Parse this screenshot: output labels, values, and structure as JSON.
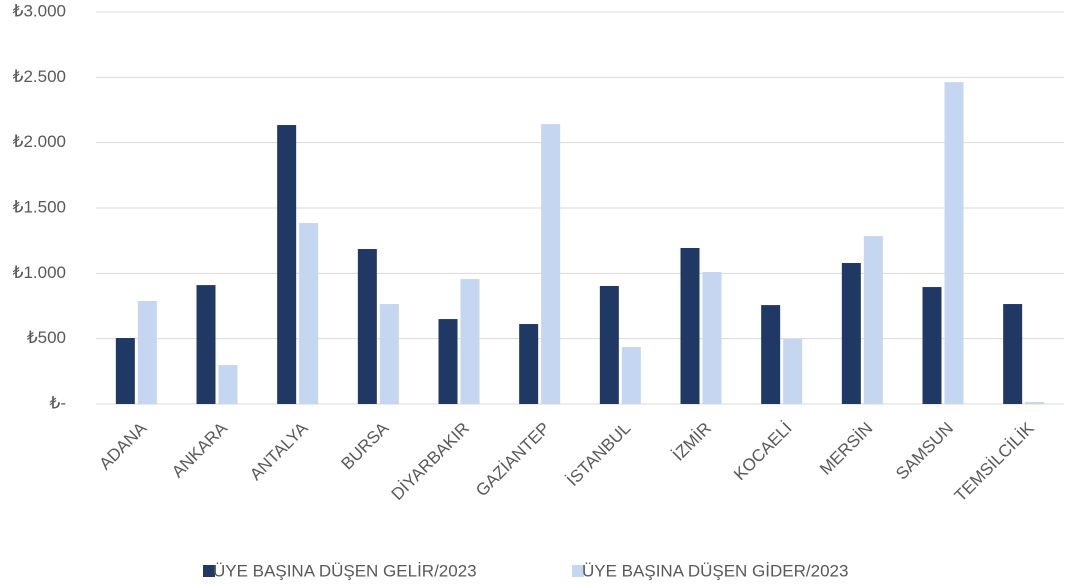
{
  "chart_data": {
    "type": "bar",
    "categories": [
      "ADANA",
      "ANKARA",
      "ANTALYA",
      "BURSA",
      "DİYARBAKIR",
      "GAZİANTEP",
      "İSTANBUL",
      "İZMİR",
      "KOCAELİ",
      "MERSİN",
      "SAMSUN",
      "TEMSİLCİLİK"
    ],
    "series": [
      {
        "name": "ÜYE BAŞINA DÜŞEN GELİR/2023",
        "color": "#1f3864",
        "values": [
          505,
          910,
          2135,
          1186,
          650,
          612,
          903,
          1194,
          757,
          1079,
          895,
          765
        ]
      },
      {
        "name": "ÜYE BAŞINA DÜŞEN GİDER/2023",
        "color": "#c5d6f0",
        "values": [
          788,
          298,
          1385,
          765,
          956,
          2142,
          436,
          1010,
          497,
          1285,
          2463,
          15
        ]
      }
    ],
    "ylim": [
      0,
      3000
    ],
    "yticks": [
      {
        "value": 0,
        "label": "₺-"
      },
      {
        "value": 500,
        "label": "₺500"
      },
      {
        "value": 1000,
        "label": "₺1.000"
      },
      {
        "value": 1500,
        "label": "₺1.500"
      },
      {
        "value": 2000,
        "label": "₺2.000"
      },
      {
        "value": 2500,
        "label": "₺2.500"
      },
      {
        "value": 3000,
        "label": "₺3.000"
      }
    ],
    "grid": true,
    "legend": "bottom"
  }
}
